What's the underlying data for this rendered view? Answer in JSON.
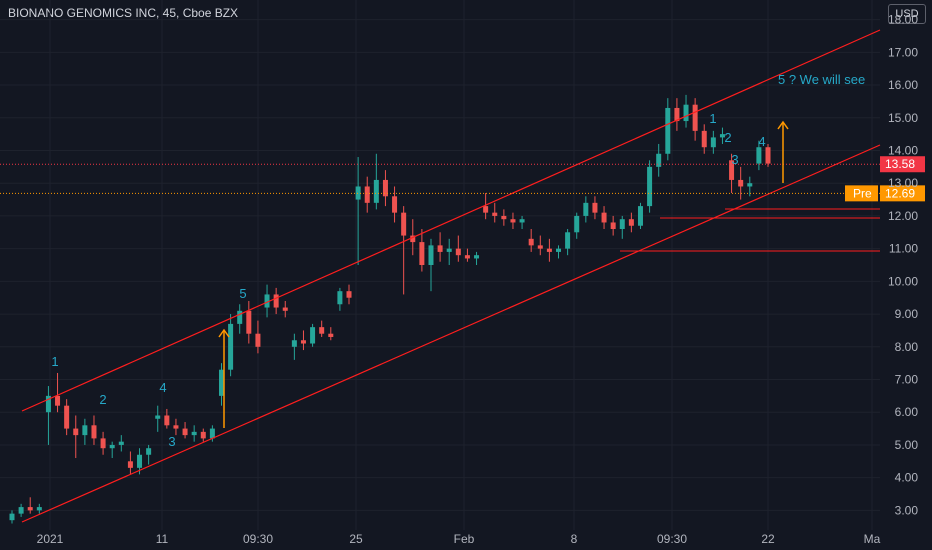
{
  "header": {
    "title": "BIONANO GENOMICS INC, 45, Cboe BZX",
    "currency": "USD"
  },
  "chart_data": {
    "type": "candlestick",
    "y_ticks": [
      "3.00",
      "4.00",
      "5.00",
      "6.00",
      "7.00",
      "8.00",
      "9.00",
      "10.00",
      "11.00",
      "12.00",
      "13.00",
      "14.00",
      "15.00",
      "16.00",
      "17.00",
      "18.00"
    ],
    "x_ticks": [
      "2021",
      "11",
      "09:30",
      "25",
      "Feb",
      "8",
      "09:30",
      "22",
      "Ma"
    ],
    "ylim": [
      2.4,
      18.6
    ],
    "colors": {
      "up": "#26a69a",
      "down": "#ef5350",
      "channel": "#ff1e1e",
      "arrow": "#ff9800",
      "labels": "#26a8c8"
    },
    "price_markers": [
      {
        "label": "13.58",
        "value": 13.58,
        "color": "#f23645"
      },
      {
        "label": "12.69",
        "prefix": "Pre",
        "value": 12.69,
        "color": "#ff9800"
      }
    ],
    "wave_labels": [
      {
        "text": "1",
        "x": 0.02,
        "y": 7.3
      },
      {
        "text": "2",
        "x": 0.07,
        "y": 6.1
      },
      {
        "text": "3",
        "x": 0.135,
        "y": 4.5
      },
      {
        "text": "4",
        "x": 0.13,
        "y": 6.4
      },
      {
        "text": "5",
        "x": 0.23,
        "y": 9.5
      },
      {
        "text": "1",
        "x": 0.745,
        "y": 15.5
      },
      {
        "text": "2",
        "x": 0.76,
        "y": 14.7
      },
      {
        "text": "3",
        "x": 0.765,
        "y": 13.9
      },
      {
        "text": "4",
        "x": 0.8,
        "y": 14.5
      }
    ],
    "annotation": "5 ? We will see",
    "candles": [
      [
        2.7,
        3.0,
        2.6,
        2.9
      ],
      [
        2.9,
        3.2,
        2.8,
        3.1
      ],
      [
        3.1,
        3.4,
        2.9,
        3.0
      ],
      [
        3.0,
        3.2,
        2.9,
        3.1
      ],
      [
        6.0,
        6.8,
        5.0,
        6.5
      ],
      [
        6.5,
        7.2,
        6.0,
        6.2
      ],
      [
        6.2,
        6.4,
        5.3,
        5.5
      ],
      [
        5.5,
        5.9,
        4.6,
        5.3
      ],
      [
        5.3,
        5.8,
        5.0,
        5.6
      ],
      [
        5.6,
        5.9,
        5.0,
        5.2
      ],
      [
        5.2,
        5.4,
        4.7,
        4.9
      ],
      [
        4.9,
        5.1,
        4.6,
        5.0
      ],
      [
        5.0,
        5.3,
        4.8,
        5.1
      ],
      [
        4.5,
        4.8,
        4.1,
        4.3
      ],
      [
        4.3,
        4.9,
        4.1,
        4.7
      ],
      [
        4.7,
        5.0,
        4.4,
        4.9
      ],
      [
        5.8,
        6.2,
        5.4,
        5.9
      ],
      [
        5.9,
        6.1,
        5.5,
        5.6
      ],
      [
        5.6,
        5.8,
        5.3,
        5.5
      ],
      [
        5.5,
        5.7,
        5.2,
        5.3
      ],
      [
        5.3,
        5.6,
        5.1,
        5.4
      ],
      [
        5.4,
        5.5,
        5.1,
        5.2
      ],
      [
        5.2,
        5.6,
        5.1,
        5.5
      ],
      [
        6.5,
        7.5,
        6.2,
        7.3
      ],
      [
        7.3,
        9.0,
        7.1,
        8.7
      ],
      [
        8.7,
        9.3,
        8.4,
        9.1
      ],
      [
        9.1,
        9.4,
        8.1,
        8.4
      ],
      [
        8.4,
        8.8,
        7.8,
        8.0
      ],
      [
        9.2,
        9.9,
        8.9,
        9.6
      ],
      [
        9.6,
        9.8,
        9.0,
        9.2
      ],
      [
        9.2,
        9.4,
        8.9,
        9.1
      ],
      [
        8.0,
        8.4,
        7.6,
        8.2
      ],
      [
        8.2,
        8.5,
        7.9,
        8.1
      ],
      [
        8.1,
        8.7,
        8.0,
        8.6
      ],
      [
        8.6,
        8.8,
        8.3,
        8.4
      ],
      [
        8.4,
        8.6,
        8.2,
        8.3
      ],
      [
        9.3,
        9.8,
        9.1,
        9.7
      ],
      [
        9.7,
        9.9,
        9.3,
        9.5
      ],
      [
        12.5,
        13.8,
        10.5,
        12.9
      ],
      [
        12.9,
        13.2,
        12.1,
        12.4
      ],
      [
        12.4,
        13.9,
        12.2,
        13.1
      ],
      [
        13.1,
        13.4,
        12.3,
        12.6
      ],
      [
        12.6,
        12.9,
        11.8,
        12.1
      ],
      [
        12.1,
        12.3,
        9.6,
        11.4
      ],
      [
        11.4,
        11.9,
        10.8,
        11.2
      ],
      [
        11.2,
        11.6,
        10.3,
        10.5
      ],
      [
        10.5,
        11.3,
        9.7,
        11.1
      ],
      [
        11.1,
        11.5,
        10.6,
        10.9
      ],
      [
        10.9,
        11.3,
        10.5,
        11.0
      ],
      [
        11.0,
        11.4,
        10.6,
        10.8
      ],
      [
        10.8,
        11.0,
        10.6,
        10.7
      ],
      [
        10.7,
        10.9,
        10.5,
        10.8
      ],
      [
        12.3,
        12.7,
        11.9,
        12.1
      ],
      [
        12.1,
        12.4,
        11.8,
        12.0
      ],
      [
        12.0,
        12.2,
        11.7,
        11.9
      ],
      [
        11.9,
        12.1,
        11.6,
        11.8
      ],
      [
        11.8,
        12.0,
        11.6,
        11.9
      ],
      [
        11.3,
        11.6,
        10.9,
        11.1
      ],
      [
        11.1,
        11.4,
        10.8,
        11.0
      ],
      [
        11.0,
        11.3,
        10.6,
        10.9
      ],
      [
        10.9,
        11.1,
        10.7,
        11.0
      ],
      [
        11.0,
        11.6,
        10.8,
        11.5
      ],
      [
        11.5,
        12.1,
        11.3,
        12.0
      ],
      [
        12.0,
        12.6,
        11.8,
        12.4
      ],
      [
        12.4,
        12.6,
        11.9,
        12.1
      ],
      [
        12.1,
        12.3,
        11.6,
        11.8
      ],
      [
        11.8,
        12.0,
        11.4,
        11.6
      ],
      [
        11.6,
        12.0,
        11.3,
        11.9
      ],
      [
        11.9,
        12.1,
        11.5,
        11.7
      ],
      [
        11.7,
        12.4,
        11.6,
        12.3
      ],
      [
        12.3,
        13.7,
        12.1,
        13.5
      ],
      [
        13.5,
        14.2,
        13.2,
        13.9
      ],
      [
        13.9,
        15.6,
        13.7,
        15.3
      ],
      [
        15.3,
        15.6,
        14.6,
        14.9
      ],
      [
        14.9,
        15.7,
        14.7,
        15.4
      ],
      [
        15.4,
        15.6,
        14.3,
        14.6
      ],
      [
        14.6,
        14.8,
        13.9,
        14.1
      ],
      [
        14.1,
        14.6,
        13.9,
        14.4
      ],
      [
        14.4,
        14.7,
        14.2,
        14.5
      ],
      [
        13.7,
        13.9,
        12.7,
        13.1
      ],
      [
        13.1,
        13.5,
        12.5,
        12.9
      ],
      [
        12.9,
        13.2,
        12.6,
        13.0
      ],
      [
        13.6,
        14.3,
        13.4,
        14.1
      ],
      [
        14.1,
        14.2,
        13.5,
        13.6
      ]
    ]
  }
}
